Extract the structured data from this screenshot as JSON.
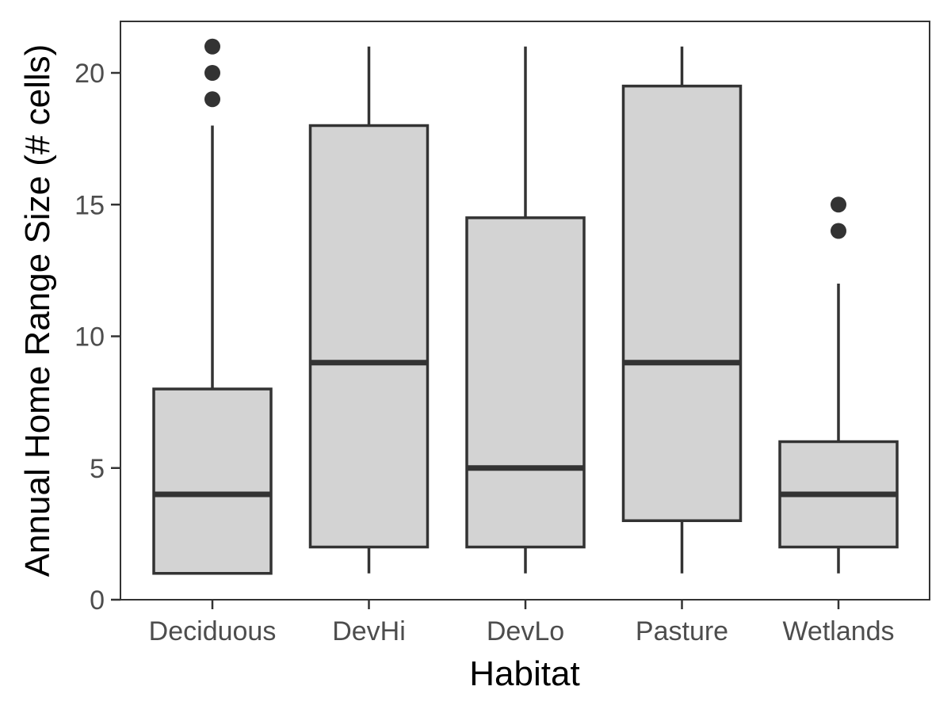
{
  "chart_data": {
    "type": "boxplot",
    "xlabel": "Habitat",
    "ylabel": "Annual Home Range Size (# cells)",
    "ylim": [
      0,
      22
    ],
    "yticks": [
      0,
      5,
      10,
      15,
      20
    ],
    "grid": false,
    "categories": [
      "Deciduous",
      "DevHi",
      "DevLo",
      "Pasture",
      "Wetlands"
    ],
    "boxes": [
      {
        "category": "Deciduous",
        "whisker_low": 1,
        "q1": 1,
        "median": 4,
        "q3": 8,
        "whisker_high": 18,
        "outliers": [
          19,
          20,
          21
        ]
      },
      {
        "category": "DevHi",
        "whisker_low": 1,
        "q1": 2,
        "median": 9,
        "q3": 18,
        "whisker_high": 21,
        "outliers": []
      },
      {
        "category": "DevLo",
        "whisker_low": 1,
        "q1": 2,
        "median": 5,
        "q3": 14.5,
        "whisker_high": 21,
        "outliers": []
      },
      {
        "category": "Pasture",
        "whisker_low": 1,
        "q1": 3,
        "median": 9,
        "q3": 19.5,
        "whisker_high": 21,
        "outliers": []
      },
      {
        "category": "Wetlands",
        "whisker_low": 1,
        "q1": 2,
        "median": 4,
        "q3": 6,
        "whisker_high": 12,
        "outliers": [
          14,
          15
        ]
      }
    ],
    "colors": {
      "box_fill": "#d3d3d3",
      "line": "#333333",
      "panel_border": "#333333",
      "tick_text": "#4d4d4d",
      "title_text": "#000000",
      "background": "#ffffff"
    }
  }
}
